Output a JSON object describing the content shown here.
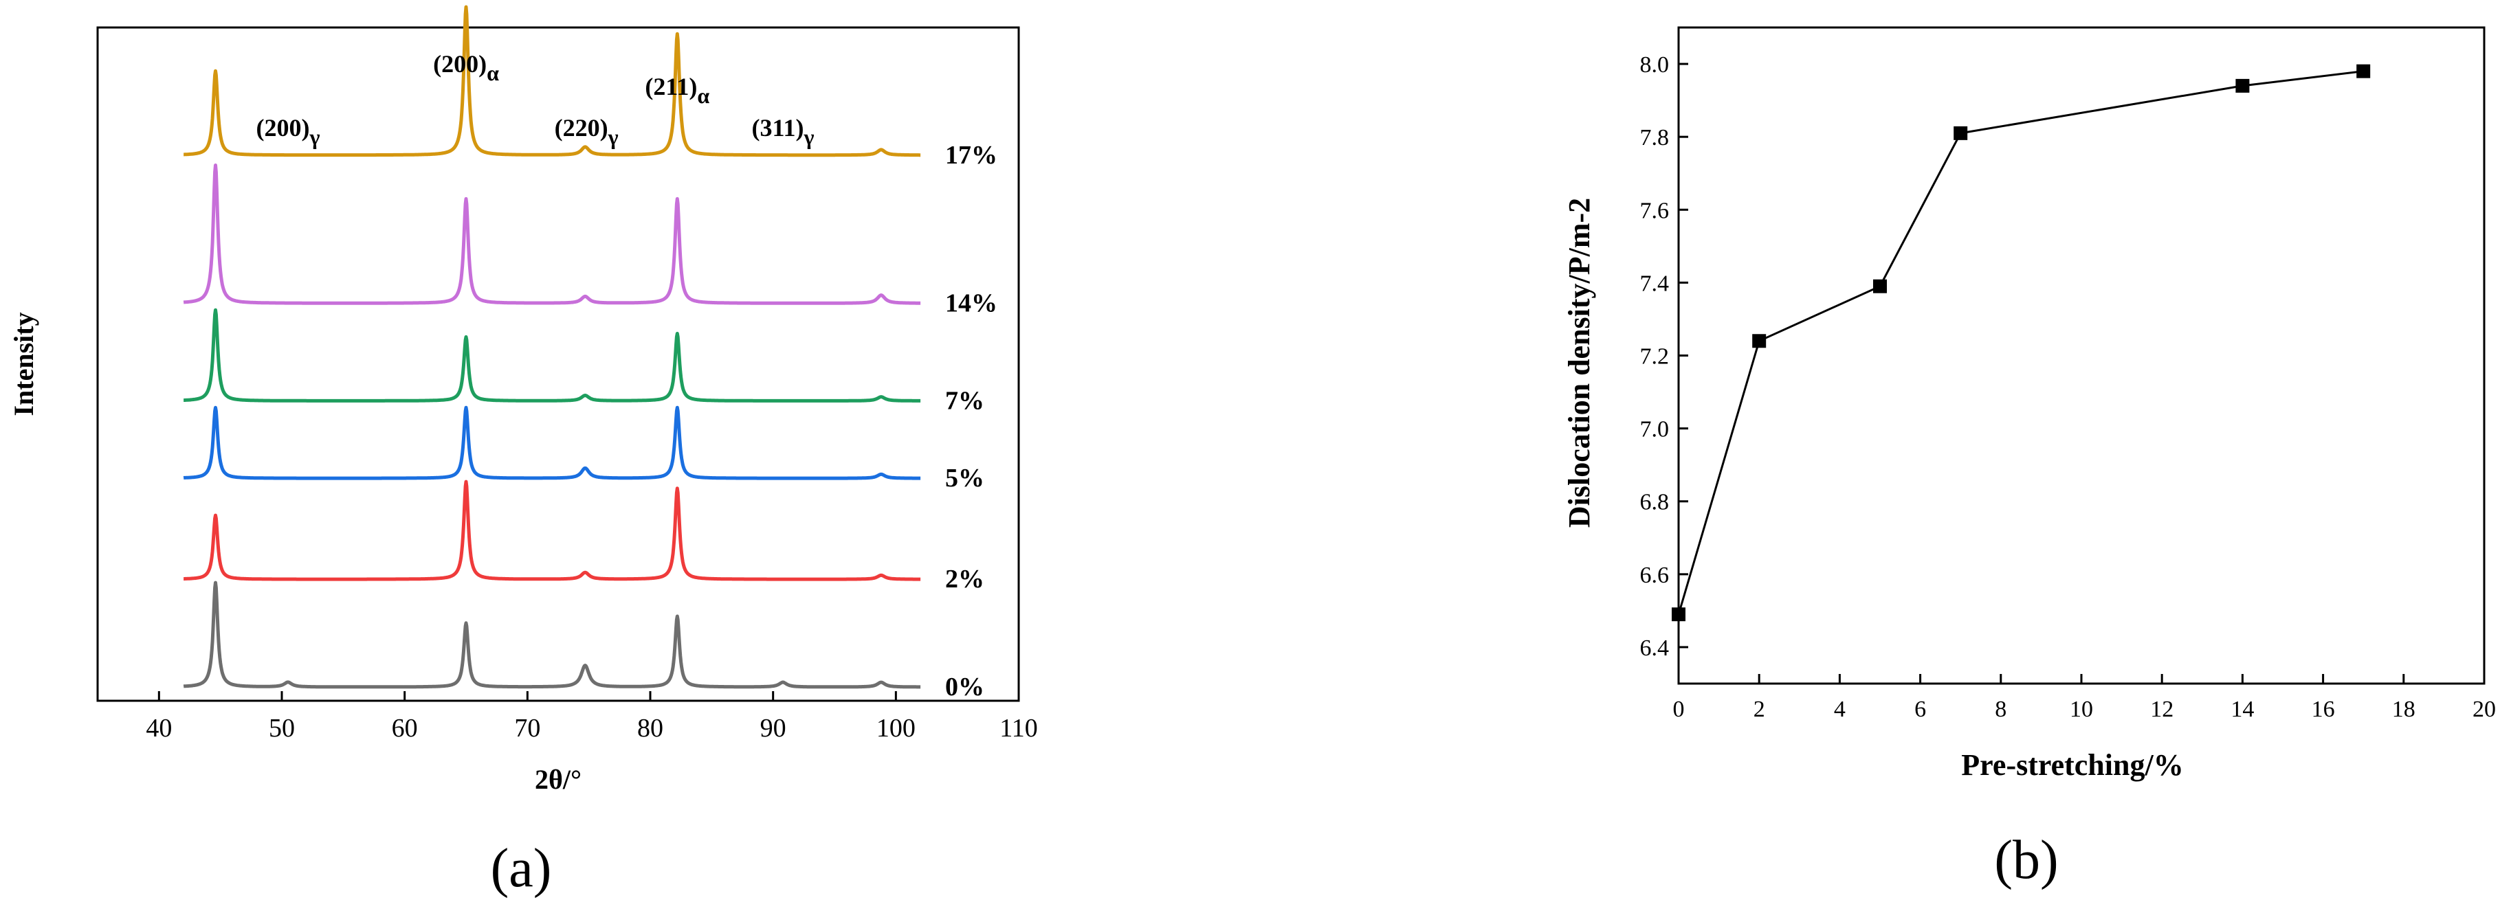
{
  "panels": {
    "a": {
      "caption": "(a)"
    },
    "b": {
      "caption": "(b)"
    }
  },
  "chart_data": [
    {
      "id": "a",
      "type": "line",
      "xlabel": "2θ/°",
      "ylabel": "Intensity",
      "xlim": [
        35,
        110
      ],
      "xticks": [
        "40",
        "50",
        "60",
        "70",
        "80",
        "90",
        "100",
        "110"
      ],
      "x_data_range": [
        42,
        102
      ],
      "peak_annotations": [
        {
          "base": "(200)",
          "sub": "α",
          "x": 65
        },
        {
          "base": "(211)",
          "sub": "α",
          "x": 82.2
        },
        {
          "base": "(200)",
          "sub": "γ",
          "x": 50.5
        },
        {
          "base": "(220)",
          "sub": "γ",
          "x": 74.8
        },
        {
          "base": "(311)",
          "sub": "γ",
          "x": 90.8
        }
      ],
      "series": [
        {
          "name": "0%",
          "color": "#6e6e6e",
          "offset": 0.0,
          "peaks": [
            {
              "x": 44.6,
              "h": 1.55
            },
            {
              "x": 50.5,
              "h": 0.07
            },
            {
              "x": 65.0,
              "h": 0.95
            },
            {
              "x": 74.7,
              "h": 0.32
            },
            {
              "x": 82.2,
              "h": 1.05
            },
            {
              "x": 90.8,
              "h": 0.07
            },
            {
              "x": 98.8,
              "h": 0.07
            }
          ]
        },
        {
          "name": "2%",
          "color": "#ef3b3b",
          "offset": 1.6,
          "peaks": [
            {
              "x": 44.6,
              "h": 0.95
            },
            {
              "x": 65.0,
              "h": 1.45
            },
            {
              "x": 74.7,
              "h": 0.1
            },
            {
              "x": 82.2,
              "h": 1.35
            },
            {
              "x": 98.8,
              "h": 0.06
            }
          ]
        },
        {
          "name": "5%",
          "color": "#1a6fe0",
          "offset": 3.1,
          "peaks": [
            {
              "x": 44.6,
              "h": 1.05
            },
            {
              "x": 65.0,
              "h": 1.05
            },
            {
              "x": 74.7,
              "h": 0.15
            },
            {
              "x": 82.2,
              "h": 1.05
            },
            {
              "x": 98.8,
              "h": 0.06
            }
          ]
        },
        {
          "name": "7%",
          "color": "#1e9e5e",
          "offset": 4.25,
          "peaks": [
            {
              "x": 44.6,
              "h": 1.35
            },
            {
              "x": 65.0,
              "h": 0.95
            },
            {
              "x": 74.7,
              "h": 0.08
            },
            {
              "x": 82.2,
              "h": 1.0
            },
            {
              "x": 98.8,
              "h": 0.06
            }
          ]
        },
        {
          "name": "14%",
          "color": "#c76fd9",
          "offset": 5.7,
          "peaks": [
            {
              "x": 44.6,
              "h": 2.05
            },
            {
              "x": 65.0,
              "h": 1.55
            },
            {
              "x": 74.7,
              "h": 0.1
            },
            {
              "x": 82.2,
              "h": 1.55
            },
            {
              "x": 98.8,
              "h": 0.12
            }
          ]
        },
        {
          "name": "17%",
          "color": "#d4960f",
          "offset": 7.9,
          "peaks": [
            {
              "x": 44.6,
              "h": 1.25
            },
            {
              "x": 65.0,
              "h": 2.2
            },
            {
              "x": 74.7,
              "h": 0.12
            },
            {
              "x": 82.2,
              "h": 1.8
            },
            {
              "x": 98.8,
              "h": 0.08
            }
          ]
        }
      ]
    },
    {
      "id": "b",
      "type": "line",
      "xlabel": "Pre-stretching/%",
      "ylabel": "Dislocation density/P/m-2",
      "xlim": [
        0,
        20
      ],
      "ylim": [
        6.3,
        8.1
      ],
      "xticks": [
        "0",
        "2",
        "4",
        "6",
        "8",
        "10",
        "12",
        "14",
        "16",
        "18",
        "20"
      ],
      "yticks": [
        "6.4",
        "6.6",
        "6.8",
        "7.0",
        "7.2",
        "7.4",
        "7.6",
        "7.8",
        "8.0"
      ],
      "x": [
        0,
        2,
        5,
        7,
        14,
        17
      ],
      "y": [
        6.49,
        7.24,
        7.39,
        7.81,
        7.94,
        7.98
      ]
    }
  ]
}
